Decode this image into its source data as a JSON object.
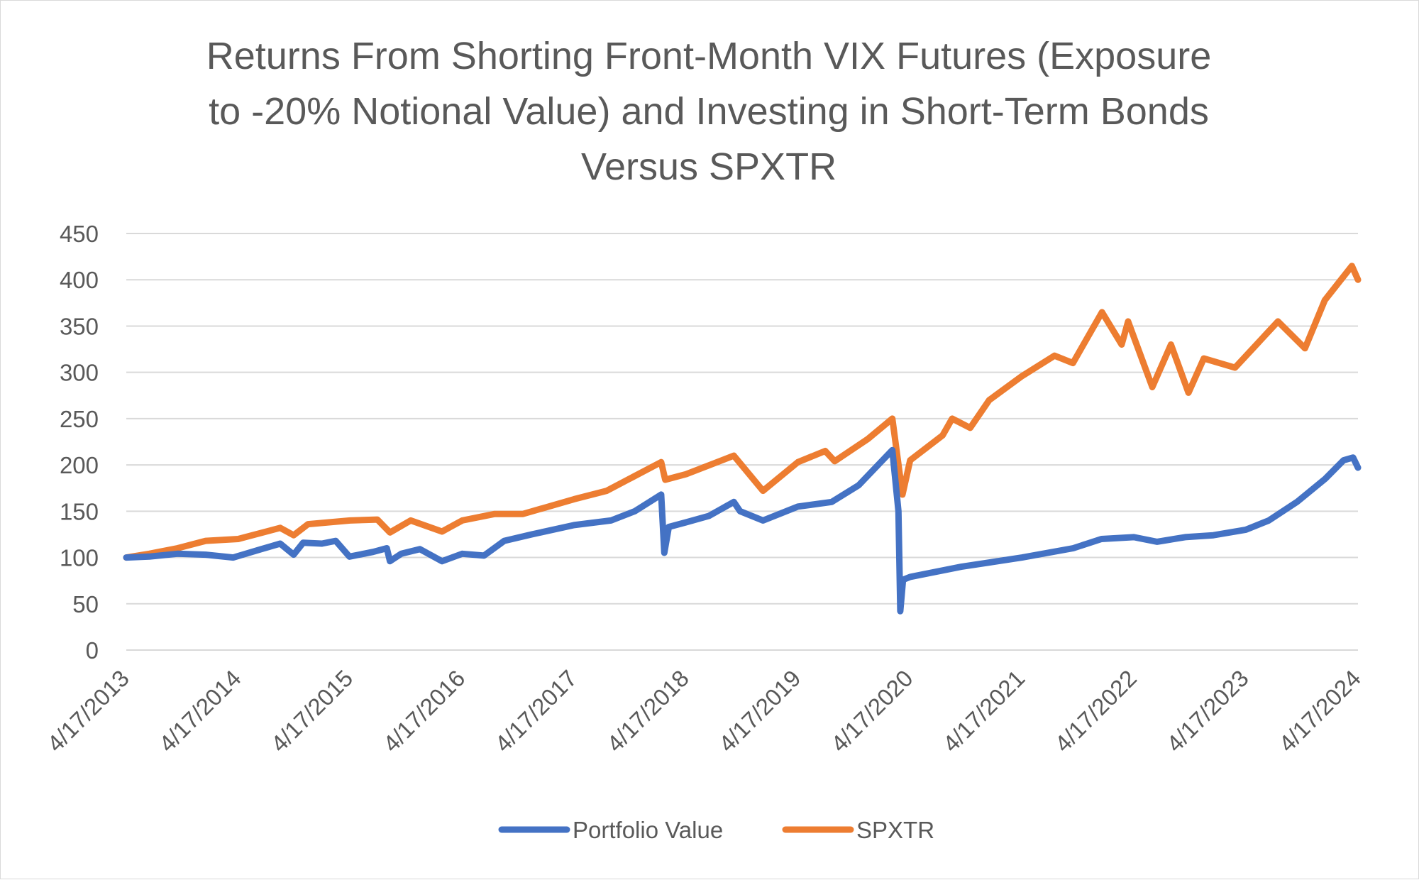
{
  "chart_data": {
    "type": "line",
    "title": [
      "Returns From Shorting Front-Month VIX Futures (Exposure",
      "to -20% Notional Value) and Investing in Short-Term Bonds",
      "Versus SPXTR"
    ],
    "xlabel": "",
    "ylabel": "",
    "ylim": [
      0,
      450
    ],
    "yticks": [
      "0",
      "50",
      "100",
      "150",
      "200",
      "250",
      "300",
      "350",
      "400",
      "450"
    ],
    "xlim": [
      "4/17/2013",
      "4/17/2024"
    ],
    "xticks": [
      "4/17/2013",
      "4/17/2014",
      "4/17/2015",
      "4/17/2016",
      "4/17/2017",
      "4/17/2018",
      "4/17/2019",
      "4/17/2020",
      "4/17/2021",
      "4/17/2022",
      "4/17/2023",
      "4/17/2024"
    ],
    "grid": "horizontal",
    "legend_position": "bottom",
    "series": [
      {
        "name": "Portfolio Value",
        "color": "#4472c4",
        "points": [
          [
            "4/17/2013",
            100
          ],
          [
            "7/1/2013",
            101
          ],
          [
            "10/1/2013",
            104
          ],
          [
            "1/1/2014",
            103
          ],
          [
            "4/1/2014",
            100
          ],
          [
            "7/1/2014",
            109
          ],
          [
            "9/1/2014",
            115
          ],
          [
            "10/15/2014",
            103
          ],
          [
            "11/15/2014",
            116
          ],
          [
            "1/15/2015",
            115
          ],
          [
            "3/1/2015",
            118
          ],
          [
            "4/15/2015",
            101
          ],
          [
            "7/1/2015",
            106
          ],
          [
            "8/15/2015",
            110
          ],
          [
            "8/25/2015",
            96
          ],
          [
            "10/1/2015",
            104
          ],
          [
            "12/1/2015",
            109
          ],
          [
            "2/11/2016",
            96
          ],
          [
            "4/17/2016",
            104
          ],
          [
            "6/27/2016",
            102
          ],
          [
            "9/1/2016",
            118
          ],
          [
            "12/1/2016",
            125
          ],
          [
            "4/17/2017",
            135
          ],
          [
            "8/15/2017",
            140
          ],
          [
            "11/1/2017",
            150
          ],
          [
            "1/26/2018",
            168
          ],
          [
            "2/5/2018",
            105
          ],
          [
            "2/20/2018",
            133
          ],
          [
            "4/17/2018",
            138
          ],
          [
            "7/1/2018",
            145
          ],
          [
            "9/20/2018",
            160
          ],
          [
            "10/10/2018",
            150
          ],
          [
            "12/24/2018",
            140
          ],
          [
            "4/17/2019",
            155
          ],
          [
            "8/5/2019",
            160
          ],
          [
            "11/1/2019",
            178
          ],
          [
            "2/19/2020",
            216
          ],
          [
            "3/10/2020",
            150
          ],
          [
            "3/16/2020",
            42
          ],
          [
            "3/25/2020",
            76
          ],
          [
            "4/17/2020",
            79
          ],
          [
            "10/1/2020",
            90
          ],
          [
            "4/17/2021",
            100
          ],
          [
            "10/1/2021",
            110
          ],
          [
            "1/1/2022",
            120
          ],
          [
            "4/17/2022",
            122
          ],
          [
            "7/1/2022",
            117
          ],
          [
            "10/1/2022",
            122
          ],
          [
            "1/1/2023",
            124
          ],
          [
            "4/17/2023",
            130
          ],
          [
            "7/1/2023",
            140
          ],
          [
            "10/1/2023",
            160
          ],
          [
            "1/1/2024",
            185
          ],
          [
            "3/1/2024",
            205
          ],
          [
            "4/1/2024",
            208
          ],
          [
            "4/17/2024",
            197
          ]
        ]
      },
      {
        "name": "SPXTR",
        "color": "#ed7d31",
        "points": [
          [
            "4/17/2013",
            100
          ],
          [
            "7/1/2013",
            104
          ],
          [
            "10/1/2013",
            110
          ],
          [
            "1/1/2014",
            118
          ],
          [
            "4/17/2014",
            120
          ],
          [
            "9/1/2014",
            132
          ],
          [
            "10/15/2014",
            124
          ],
          [
            "12/1/2014",
            136
          ],
          [
            "4/17/2015",
            140
          ],
          [
            "7/15/2015",
            141
          ],
          [
            "8/25/2015",
            127
          ],
          [
            "11/1/2015",
            140
          ],
          [
            "2/11/2016",
            128
          ],
          [
            "4/17/2016",
            140
          ],
          [
            "8/1/2016",
            147
          ],
          [
            "11/1/2016",
            147
          ],
          [
            "4/17/2017",
            163
          ],
          [
            "8/1/2017",
            172
          ],
          [
            "1/26/2018",
            203
          ],
          [
            "2/8/2018",
            184
          ],
          [
            "4/17/2018",
            190
          ],
          [
            "9/20/2018",
            210
          ],
          [
            "12/24/2018",
            172
          ],
          [
            "4/17/2019",
            203
          ],
          [
            "7/15/2019",
            215
          ],
          [
            "8/15/2019",
            204
          ],
          [
            "12/1/2019",
            228
          ],
          [
            "2/19/2020",
            250
          ],
          [
            "3/23/2020",
            168
          ],
          [
            "4/17/2020",
            205
          ],
          [
            "8/1/2020",
            232
          ],
          [
            "9/1/2020",
            250
          ],
          [
            "10/30/2020",
            240
          ],
          [
            "12/31/2020",
            270
          ],
          [
            "4/17/2021",
            296
          ],
          [
            "8/1/2021",
            318
          ],
          [
            "9/30/2021",
            310
          ],
          [
            "1/3/2022",
            365
          ],
          [
            "3/8/2022",
            330
          ],
          [
            "3/29/2022",
            355
          ],
          [
            "6/16/2022",
            284
          ],
          [
            "8/16/2022",
            330
          ],
          [
            "10/12/2022",
            278
          ],
          [
            "12/1/2022",
            315
          ],
          [
            "3/13/2023",
            305
          ],
          [
            "7/31/2023",
            355
          ],
          [
            "10/27/2023",
            326
          ],
          [
            "12/31/2023",
            378
          ],
          [
            "3/28/2024",
            415
          ],
          [
            "4/17/2024",
            400
          ]
        ]
      }
    ]
  }
}
